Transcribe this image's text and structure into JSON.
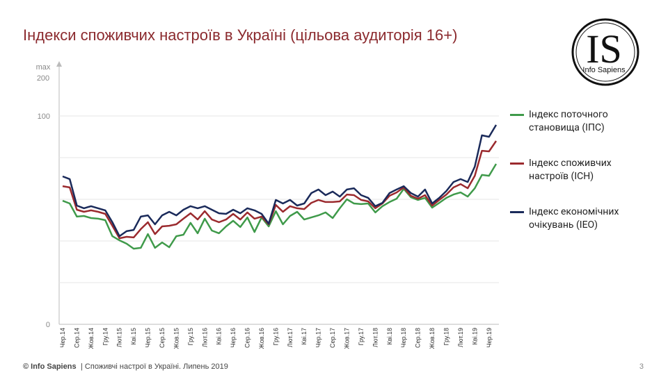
{
  "chart_data": {
    "type": "line",
    "title": "Індекси споживчих настроїв в Україні (цільова аудиторія 16+)",
    "categories": [
      "Чер.14",
      null,
      "Сер.14",
      null,
      "Жов.14",
      null,
      "Гру.14",
      null,
      "Лют.15",
      null,
      "Кві.15",
      null,
      "Чер.15",
      null,
      "Сер.15",
      null,
      "Жов.15",
      null,
      "Гру.15",
      null,
      "Лют.16",
      null,
      "Кві.16",
      null,
      "Чер.16",
      null,
      "Сер.16",
      null,
      "Жов.16",
      null,
      "Гру.16",
      null,
      "Лют.17",
      null,
      "Кві.17",
      null,
      "Чер.17",
      null,
      "Сер.17",
      null,
      "Жов.17",
      null,
      "Гру.17",
      null,
      "Лют.18",
      null,
      "Кві.18",
      null,
      "Чер.18",
      null,
      "Сер.18",
      null,
      "Жов.18",
      null,
      "Гру.18",
      null,
      "Лют.19",
      null,
      "Кві.19",
      null,
      "Чер.19",
      null
    ],
    "series": [
      {
        "name": "Індекс поточного становища (ІПС)",
        "color": "#3f9a4a",
        "values": [
          59.3,
          58,
          51.7,
          52,
          51,
          50.7,
          50,
          42.3,
          40.3,
          38.7,
          36.3,
          36.7,
          43.3,
          36.7,
          39.3,
          37,
          42.3,
          43,
          48.7,
          43.7,
          50.7,
          45,
          43.7,
          47,
          49.7,
          46.7,
          51.3,
          44.3,
          51.3,
          47,
          54.3,
          48,
          52,
          54,
          50.3,
          51.3,
          52.3,
          53.7,
          51,
          55.7,
          60,
          58,
          57.7,
          58,
          53.7,
          56.7,
          58.7,
          60.3,
          65,
          61,
          59.7,
          60.7,
          56,
          58.3,
          60.7,
          62.3,
          63.3,
          61.3,
          65.3,
          71.7,
          71.3,
          77
        ]
      },
      {
        "name": "Індекс споживчих настроїв (ІСН)",
        "color": "#9b2a2e",
        "values": [
          66.3,
          65.7,
          55,
          54,
          54.7,
          54,
          53,
          47.3,
          41.3,
          42,
          41.7,
          45.7,
          49,
          43.3,
          47,
          47.3,
          48,
          50.7,
          53.3,
          50.3,
          54.3,
          50.3,
          49,
          50.3,
          53,
          50.3,
          53.7,
          50.7,
          51.7,
          48,
          57.3,
          54,
          56.7,
          55.7,
          55.3,
          58.3,
          59.7,
          58.7,
          58.7,
          59,
          62.3,
          62,
          59.7,
          59,
          55.7,
          58,
          61.7,
          63.3,
          65.7,
          61.7,
          60.3,
          62,
          57,
          59.7,
          62.3,
          65.7,
          67.3,
          65.3,
          71.3,
          83.3,
          83,
          88
        ]
      },
      {
        "name": "Індекс економічних очікувань (ІЕО)",
        "color": "#1a2a5a",
        "values": [
          71,
          69.7,
          57,
          55.7,
          56.7,
          55.7,
          54.7,
          49,
          42.3,
          44.7,
          45.3,
          51.7,
          52.3,
          48,
          52.3,
          54,
          52.3,
          55,
          56.7,
          55.7,
          56.7,
          55,
          53.3,
          53,
          55,
          53.3,
          55.7,
          54.7,
          53,
          48.3,
          59.7,
          58,
          59.7,
          57,
          58,
          63,
          64.7,
          62,
          63.7,
          61.3,
          64.7,
          65.3,
          62,
          60.7,
          56.7,
          58.3,
          63,
          64.7,
          66.3,
          63,
          61.3,
          64.7,
          58,
          60.7,
          64,
          68.3,
          69.7,
          68.3,
          75.7,
          90.7,
          90,
          95.7
        ]
      }
    ],
    "ylim": [
      0,
      126
    ],
    "yticks": [
      0,
      100
    ],
    "grid_lines": [
      20,
      40,
      60,
      80,
      100
    ],
    "y_axis_note": [
      "max",
      "200"
    ],
    "legend": "right"
  },
  "logo": {
    "mark": "IS",
    "name": "Info Sapiens"
  },
  "footer": {
    "brand": "© Info Sapiens",
    "text": " | Споживчі настрої в Україні. Липень 2019",
    "page": "3"
  }
}
